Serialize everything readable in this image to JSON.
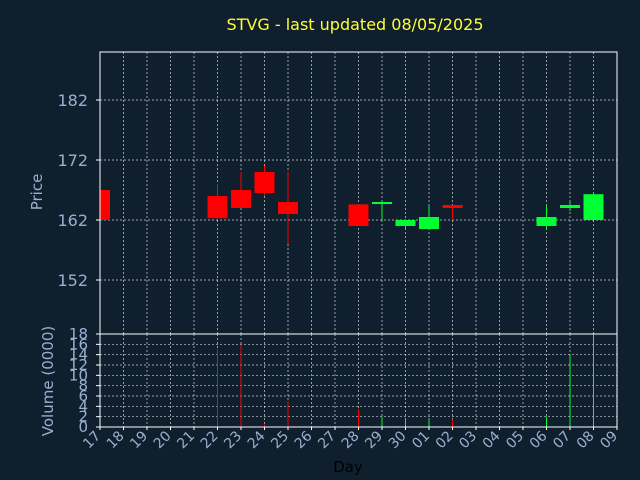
{
  "title": "STVG - last updated 08/05/2025",
  "colors": {
    "background": "#0f1f2e",
    "title": "#ffff33",
    "axis_text": "#9ab0d0",
    "x_title": "#000000",
    "up": "#00ff33",
    "down": "#ff0000",
    "frame": "#ffffff",
    "grid": "#ffffff"
  },
  "chart_data": [
    {
      "type": "candlestick",
      "ylabel": "Price",
      "ylim": [
        143,
        190
      ],
      "yticks": [
        "152",
        "162",
        "172",
        "182"
      ],
      "grid": true,
      "points": [
        {
          "day": "17",
          "open": 167,
          "high": 167,
          "low": 162,
          "close": 162
        },
        {
          "day": "22",
          "open": 166,
          "high": 168,
          "low": 162,
          "close": 162.3
        },
        {
          "day": "23",
          "open": 167,
          "high": 170,
          "low": 164,
          "close": 164
        },
        {
          "day": "24",
          "open": 170,
          "high": 171,
          "low": 166,
          "close": 166.5
        },
        {
          "day": "25",
          "open": 165,
          "high": 170,
          "low": 158,
          "close": 163
        },
        {
          "day": "28",
          "open": 164.6,
          "high": 164.6,
          "low": 161,
          "close": 161
        },
        {
          "day": "29",
          "open": 164.8,
          "high": 165,
          "low": 162,
          "close": 165
        },
        {
          "day": "30",
          "open": 161,
          "high": 162,
          "low": 160.5,
          "close": 162
        },
        {
          "day": "01",
          "open": 160.5,
          "high": 164.5,
          "low": 160.5,
          "close": 162.5
        },
        {
          "day": "02",
          "open": 164.5,
          "high": 164.5,
          "low": 162,
          "close": 164
        },
        {
          "day": "06",
          "open": 161,
          "high": 164.5,
          "low": 160.5,
          "close": 162.5
        },
        {
          "day": "07",
          "open": 164,
          "high": 165,
          "low": 163.5,
          "close": 164.5
        },
        {
          "day": "08",
          "open": 162,
          "high": 166.3,
          "low": 162,
          "close": 166.3
        }
      ]
    },
    {
      "type": "bar",
      "ylabel": "Volume (0000)",
      "ylim": [
        0,
        18
      ],
      "yticks": [
        "0",
        "2",
        "4",
        "6",
        "8",
        "10",
        "12",
        "14",
        "16",
        "18"
      ],
      "grid": true,
      "points": [
        {
          "day": "17",
          "value": 0,
          "direction": "down"
        },
        {
          "day": "22",
          "value": 15,
          "direction": "down"
        },
        {
          "day": "23",
          "value": 16,
          "direction": "down"
        },
        {
          "day": "24",
          "value": 0.5,
          "direction": "down"
        },
        {
          "day": "25",
          "value": 5,
          "direction": "down"
        },
        {
          "day": "28",
          "value": 3.5,
          "direction": "down"
        },
        {
          "day": "29",
          "value": 2,
          "direction": "up"
        },
        {
          "day": "30",
          "value": 1.5,
          "direction": "up"
        },
        {
          "day": "01",
          "value": 1.5,
          "direction": "up"
        },
        {
          "day": "02",
          "value": 1.5,
          "direction": "down"
        },
        {
          "day": "06",
          "value": 2,
          "direction": "up"
        },
        {
          "day": "07",
          "value": 14,
          "direction": "up"
        },
        {
          "day": "08",
          "value": 18,
          "direction": "up"
        }
      ]
    }
  ],
  "xaxis": {
    "label": "Day",
    "ticks": [
      "17",
      "18",
      "19",
      "20",
      "21",
      "22",
      "23",
      "24",
      "25",
      "26",
      "27",
      "28",
      "29",
      "30",
      "01",
      "02",
      "03",
      "04",
      "05",
      "06",
      "07",
      "08",
      "09"
    ]
  }
}
